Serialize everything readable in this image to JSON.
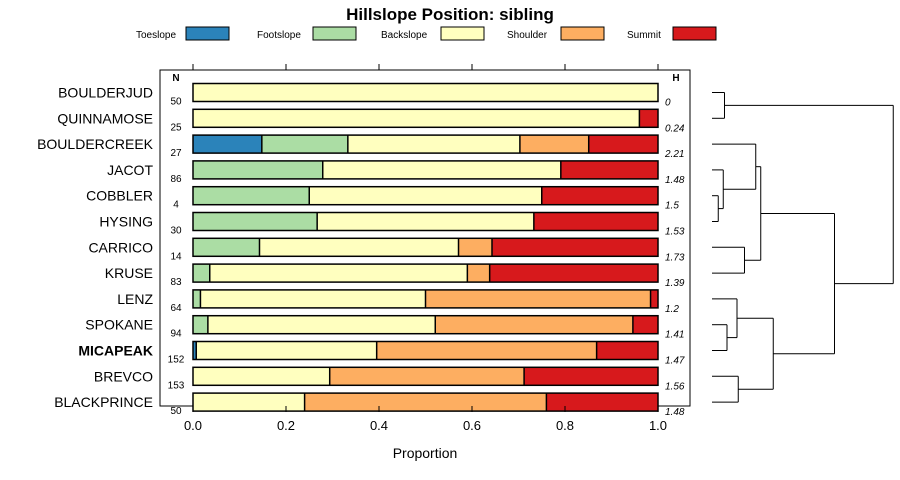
{
  "chart_data": {
    "type": "bar",
    "subtype": "stacked-horizontal-proportion",
    "title": "Hillslope Position: sibling",
    "xlabel": "Proportion",
    "ylabel": "",
    "xlim": [
      0,
      1
    ],
    "xticks": [
      "0.0",
      "0.2",
      "0.4",
      "0.6",
      "0.8",
      "1.0"
    ],
    "column_headers": {
      "n": "N",
      "h": "H"
    },
    "legend": [
      {
        "name": "Toeslope",
        "color": "#2b83ba"
      },
      {
        "name": "Footslope",
        "color": "#abdda4"
      },
      {
        "name": "Backslope",
        "color": "#ffffbf"
      },
      {
        "name": "Shoulder",
        "color": "#fdae61"
      },
      {
        "name": "Summit",
        "color": "#d7191c"
      }
    ],
    "categories": [
      "BOULDERJUD",
      "QUINNAMOSE",
      "BOULDERCREEK",
      "JACOT",
      "COBBLER",
      "HYSING",
      "CARRICO",
      "KRUSE",
      "LENZ",
      "SPOKANE",
      "MICAPEAK",
      "BREVCO",
      "BLACKPRINCE"
    ],
    "highlight": "MICAPEAK",
    "n": [
      "50",
      "25",
      "27",
      "86",
      "4",
      "30",
      "14",
      "83",
      "64",
      "94",
      "152",
      "153",
      "50"
    ],
    "h": [
      "0",
      "0.24",
      "2.21",
      "1.48",
      "1.5",
      "1.53",
      "1.73",
      "1.39",
      "1.2",
      "1.41",
      "1.47",
      "1.56",
      "1.48"
    ],
    "series": [
      {
        "name": "Toeslope",
        "values": [
          0,
          0,
          0.148,
          0,
          0,
          0,
          0,
          0,
          0,
          0,
          0.007,
          0,
          0
        ]
      },
      {
        "name": "Footslope",
        "values": [
          0,
          0,
          0.185,
          0.279,
          0.25,
          0.267,
          0.143,
          0.036,
          0.016,
          0.032,
          0,
          0,
          0
        ]
      },
      {
        "name": "Backslope",
        "values": [
          1,
          0.96,
          0.37,
          0.512,
          0.5,
          0.466,
          0.428,
          0.554,
          0.484,
          0.489,
          0.388,
          0.294,
          0.24
        ]
      },
      {
        "name": "Shoulder",
        "values": [
          0,
          0,
          0.148,
          0,
          0,
          0,
          0.072,
          0.048,
          0.484,
          0.425,
          0.473,
          0.418,
          0.52
        ]
      },
      {
        "name": "Summit",
        "values": [
          0,
          0.04,
          0.149,
          0.209,
          0.25,
          0.267,
          0.357,
          0.362,
          0.016,
          0.054,
          0.132,
          0.288,
          0.24
        ]
      }
    ],
    "dendrogram": {
      "type": "hierarchical-clustering",
      "leaves": [
        "BOULDERJUD",
        "QUINNAMOSE",
        "BOULDERCREEK",
        "JACOT",
        "COBBLER",
        "HYSING",
        "CARRICO",
        "KRUSE",
        "LENZ",
        "SPOKANE",
        "MICAPEAK",
        "BREVCO",
        "BLACKPRINCE"
      ],
      "merges": [
        {
          "id": 0,
          "children": [
            "L4",
            "L5"
          ],
          "height": 0.05
        },
        {
          "id": 1,
          "children": [
            "L3",
            "M0"
          ],
          "height": 0.09
        },
        {
          "id": 2,
          "children": [
            "L9",
            "L10"
          ],
          "height": 0.12
        },
        {
          "id": 3,
          "children": [
            "L8",
            "M2"
          ],
          "height": 0.2
        },
        {
          "id": 4,
          "children": [
            "L0",
            "L1"
          ],
          "height": 0.1
        },
        {
          "id": 5,
          "children": [
            "L11",
            "L12"
          ],
          "height": 0.21
        },
        {
          "id": 6,
          "children": [
            "L6",
            "L7"
          ],
          "height": 0.26
        },
        {
          "id": 7,
          "children": [
            "L2",
            "M1"
          ],
          "height": 0.35
        },
        {
          "id": 8,
          "children": [
            "M3",
            "M5"
          ],
          "height": 0.49
        },
        {
          "id": 9,
          "children": [
            "M7",
            "M6"
          ],
          "height": 0.39
        },
        {
          "id": 10,
          "children": [
            "M9",
            "M8"
          ],
          "height": 0.98
        },
        {
          "id": 11,
          "children": [
            "M4",
            "M10"
          ],
          "height": 1.45
        }
      ]
    }
  }
}
